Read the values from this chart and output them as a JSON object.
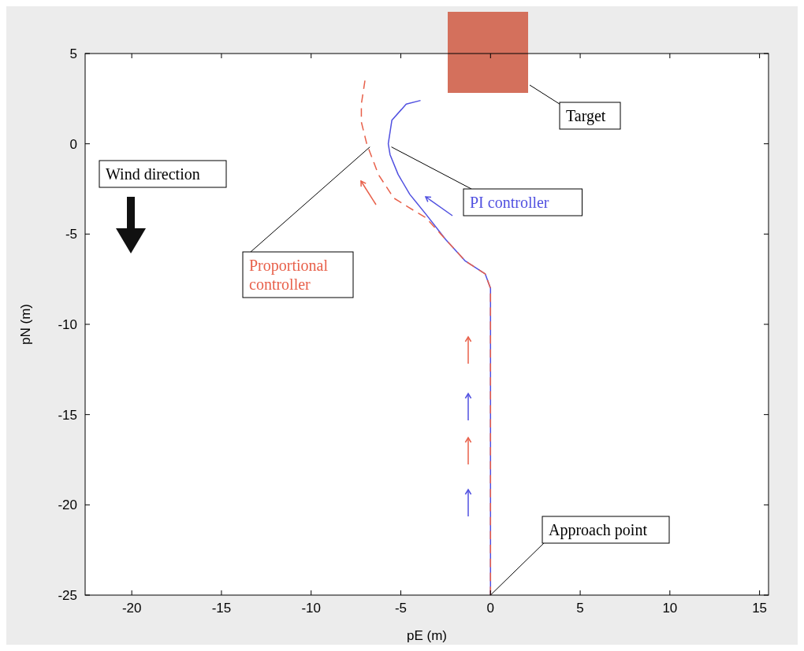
{
  "chart_data": {
    "type": "line",
    "xlabel": "pE (m)",
    "ylabel": "pN (m)",
    "xlim": [
      -22.6,
      15.5
    ],
    "ylim": [
      -25,
      5
    ],
    "xticks": [
      -20,
      -15,
      -10,
      -5,
      0,
      5,
      10,
      15
    ],
    "yticks": [
      -25,
      -20,
      -15,
      -10,
      -5,
      0,
      5
    ],
    "grid": false,
    "series": [
      {
        "name": "PI controller",
        "color": "#5050e0",
        "line_style": "solid",
        "x": [
          0,
          0,
          -0.3,
          -1.4,
          -2.5,
          -3.6,
          -4.5,
          -5.15,
          -5.6,
          -5.7,
          -5.5,
          -4.7,
          -3.9
        ],
        "values": [
          -25,
          -8,
          -7.2,
          -6.5,
          -5.3,
          -3.9,
          -2.8,
          -1.7,
          -0.6,
          0,
          1.3,
          2.2,
          2.4
        ]
      },
      {
        "name": "Proportional controller",
        "color": "#e8604a",
        "line_style": "dashed",
        "x": [
          0,
          0,
          -0.3,
          -1.4,
          -2.5,
          -3.6,
          -4.6,
          -5.4,
          -6.25,
          -6.9,
          -7.2,
          -7.2,
          -7.0
        ],
        "values": [
          -25,
          -8,
          -7.2,
          -6.5,
          -5.3,
          -4.1,
          -3.5,
          -3,
          -1.7,
          0,
          1.2,
          2.2,
          3.5
        ]
      }
    ],
    "annotations": [
      "Target",
      {
        "text": "Approach point",
        "x": 0,
        "y": -25
      },
      "Wind direction"
    ]
  }
}
